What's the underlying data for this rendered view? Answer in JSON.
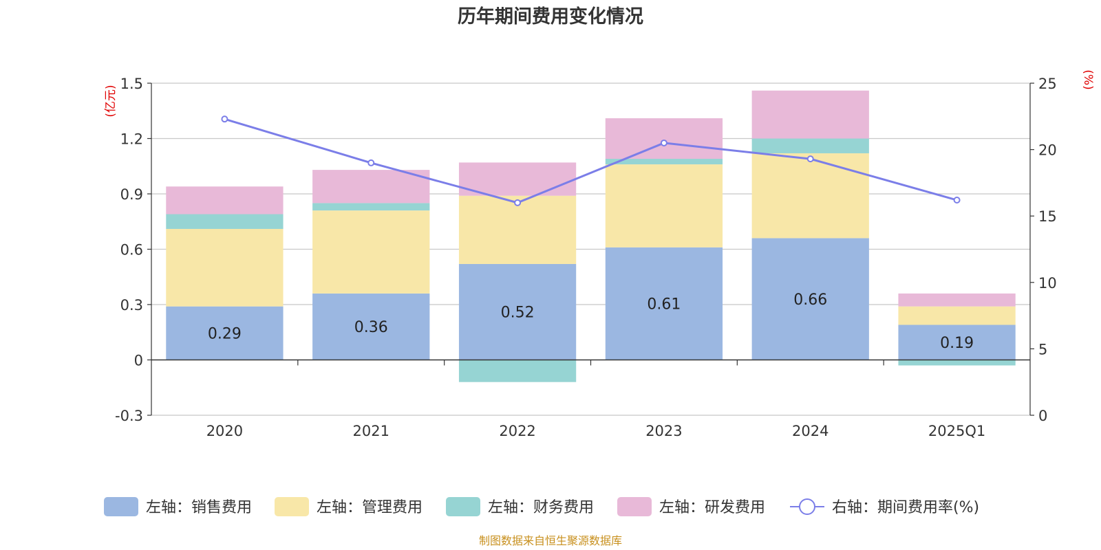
{
  "chart_data": {
    "type": "bar",
    "title": "历年期间费用变化情况",
    "categories": [
      "2020",
      "2021",
      "2022",
      "2023",
      "2024",
      "2025Q1"
    ],
    "left_axis": {
      "unit": "(亿元)",
      "ylim": [
        -0.3,
        1.5
      ],
      "ticks": [
        -0.3,
        0,
        0.3,
        0.6,
        0.9,
        1.2,
        1.5
      ],
      "tick_labels": [
        "-0.3",
        "0",
        "0.3",
        "0.6",
        "0.9",
        "1.2",
        "1.5"
      ]
    },
    "right_axis": {
      "unit": "(%)",
      "ylim": [
        0,
        25
      ],
      "ticks": [
        0,
        5,
        10,
        15,
        20,
        25
      ],
      "tick_labels": [
        "0",
        "5",
        "10",
        "15",
        "20",
        "25"
      ]
    },
    "stacked_series": [
      {
        "name": "左轴：销售费用",
        "color": "#9bb7e1",
        "values": [
          0.29,
          0.36,
          0.52,
          0.61,
          0.66,
          0.19
        ]
      },
      {
        "name": "左轴：管理费用",
        "color": "#f8e7a8",
        "values": [
          0.42,
          0.45,
          0.37,
          0.45,
          0.46,
          0.1
        ]
      },
      {
        "name": "左轴：财务费用",
        "color": "#96d4d3",
        "values": [
          0.08,
          0.04,
          -0.12,
          0.03,
          0.08,
          -0.03
        ]
      },
      {
        "name": "左轴：研发费用",
        "color": "#e8b9d8",
        "values": [
          0.15,
          0.18,
          0.18,
          0.22,
          0.26,
          0.07
        ]
      }
    ],
    "bar_labels": [
      "0.29",
      "0.36",
      "0.52",
      "0.61",
      "0.66",
      "0.19"
    ],
    "line_series": {
      "name": "右轴：期间费用率(%)",
      "color": "#7b7ee8",
      "values": [
        22.3,
        19.0,
        16.0,
        20.5,
        19.3,
        16.2
      ]
    },
    "grid": true,
    "legend_position": "bottom"
  },
  "footer": {
    "source": "制图数据来自恒生聚源数据库"
  }
}
